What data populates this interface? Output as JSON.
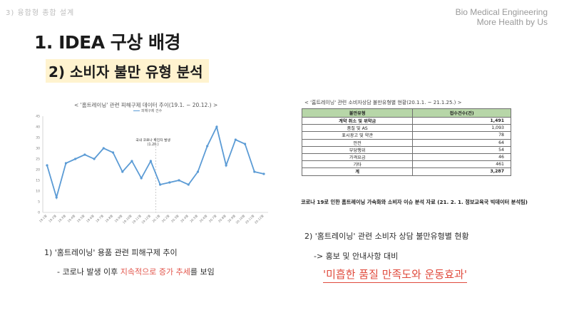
{
  "header": {
    "top_left": "3) 융합형 종합 설계",
    "brand_line1": "Bio Medical Engineering",
    "brand_line2": "More Health by Us"
  },
  "title": "1. IDEA 구상 배경",
  "subtitle": "2) 소비자 불만 유형 분석",
  "line_chart": {
    "title": "< '홈트레이닝' 관련 피해구제 데이터 추이(19.1. ~ 20.12.) >",
    "legend": "피해구제 건수",
    "annotation_line1": "국내 코로나 확진자 발생",
    "annotation_line2": "(1.20.)",
    "color": "#5b9bd5"
  },
  "chart_data": {
    "type": "line",
    "title": "< '홈트레이닝' 관련 피해구제 데이터 추이(19.1. ~ 20.12.) >",
    "series": [
      {
        "name": "피해구제 건수",
        "values": [
          22,
          7,
          23,
          25,
          27,
          25,
          30,
          28,
          19,
          24,
          16,
          24,
          13,
          14,
          15,
          13,
          19,
          31,
          40,
          22,
          34,
          32,
          19,
          18
        ]
      }
    ],
    "categories": [
      "19.1월",
      "19.2월",
      "19.3월",
      "19.4월",
      "19.5월",
      "19.6월",
      "19.7월",
      "19.8월",
      "19.9월",
      "19.10월",
      "19.11월",
      "19.12월",
      "20.1월",
      "20.2월",
      "20.3월",
      "20.4월",
      "20.5월",
      "20.6월",
      "20.7월",
      "20.8월",
      "20.9월",
      "20.10월",
      "20.11월",
      "20.12월"
    ],
    "yticks": [
      "0",
      "5",
      "10",
      "15",
      "20",
      "25",
      "30",
      "35",
      "40",
      "45"
    ],
    "ylim": [
      0,
      45
    ],
    "grid": false
  },
  "complaint_table": {
    "title": "< '홈트레이닝' 관련 소비자상담 불만유형별 현황(20.1.1. ~ 21.1.25.) >",
    "headers": [
      "불만유형",
      "접수건수(건)"
    ],
    "rows": [
      [
        "계약 취소 및 위약금",
        "1,491"
      ],
      [
        "품질 및 AS",
        "1,093"
      ],
      [
        "표시광고 및 약관",
        "78"
      ],
      [
        "안전",
        "64"
      ],
      [
        "부당행위",
        "54"
      ],
      [
        "가격요금",
        "46"
      ],
      [
        "기타",
        "461"
      ],
      [
        "계",
        "3,287"
      ]
    ],
    "source": "코로나 19로 인한 홈트레이닝 가속화와 소비자 이슈 분석 자료 (21. 2. 1. 정보교육국 빅데이터 분석팀)"
  },
  "notes": {
    "left_1": "1) '홈트레이닝' 용품 관련 피해구제 추이",
    "left_2_prefix": "- 코로나 발생 이후 ",
    "left_2_highlight": "지속적으로 증가 추세",
    "left_2_suffix": "를 보임",
    "right_1": "2) '홈트레이닝' 관련 소비자 상담  불만유형별 현황",
    "right_2": "-> 홍보 및 안내사항 대비",
    "callout": "'미흡한 품질 만족도와 운동효과'"
  }
}
